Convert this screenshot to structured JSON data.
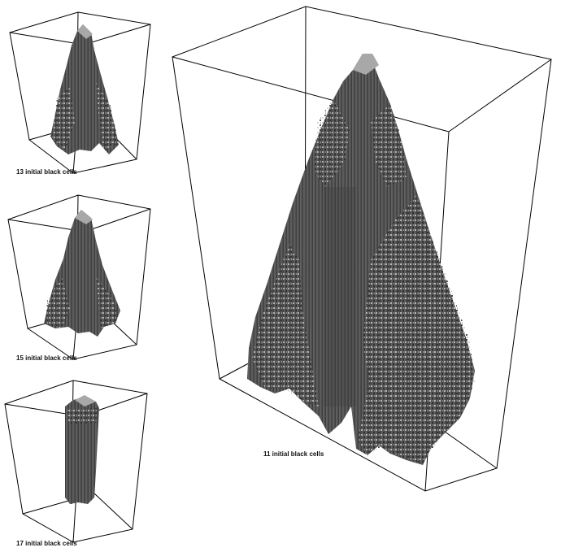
{
  "panels": [
    {
      "id": "p11",
      "caption": "11 initial black cells"
    },
    {
      "id": "p13",
      "caption": "13 initial black cells"
    },
    {
      "id": "p15",
      "caption": "15 initial black cells"
    },
    {
      "id": "p17",
      "caption": "17 initial black cells"
    }
  ],
  "colors": {
    "background": "#ffffff",
    "box_edge": "#000000",
    "column_face": "#5e5e5e",
    "column_dark": "#3a3a3a",
    "column_top": "#a8a8a8",
    "caption_text": "#111111"
  }
}
